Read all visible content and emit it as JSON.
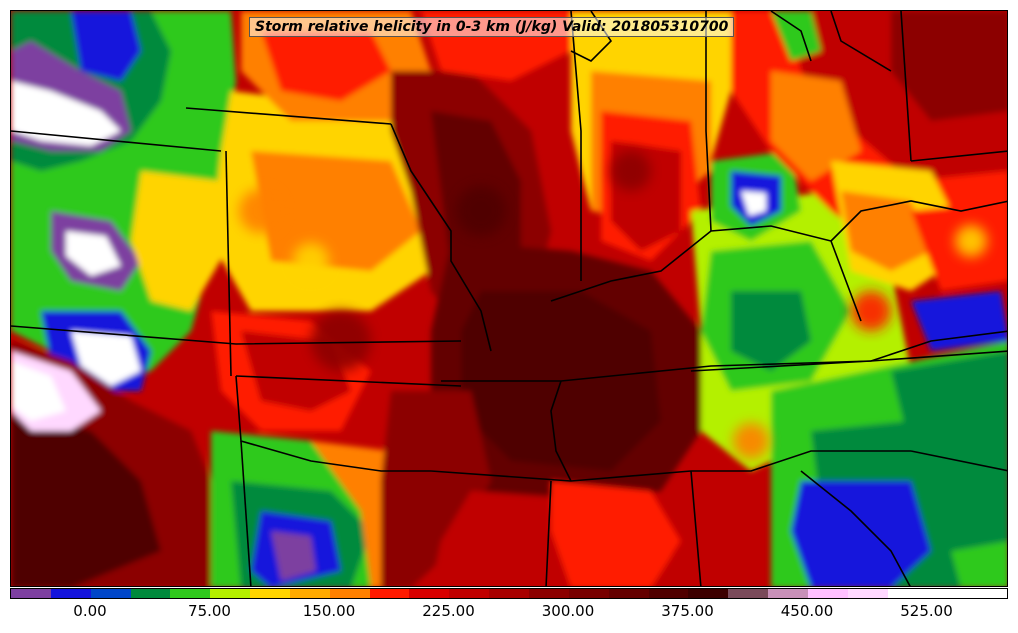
{
  "map": {
    "title": "Storm relative helicity in 0-3 km (J/kg) Valid: 201805310700",
    "colors": {
      "white": "#ffffff",
      "lavender": "#ffd0ff",
      "purple": "#7d3fa0",
      "blue": "#1414dc",
      "green": "#008a3c",
      "light_green": "#2fc91c",
      "yellow_green": "#b4f000",
      "yellow": "#ffd400",
      "orange": "#ff8000",
      "red": "#ff1a00",
      "dark_red": "#c00000",
      "deep_red": "#8c0000",
      "maroon": "#5a0000",
      "border": "#000000"
    }
  },
  "colorbar": {
    "colors": [
      "#7d3fa0",
      "#1414dc",
      "#0046c8",
      "#008a3c",
      "#2fc91c",
      "#b4f000",
      "#ffd400",
      "#ffaa00",
      "#ff8000",
      "#ff1a00",
      "#d80000",
      "#c00000",
      "#a80000",
      "#8c0000",
      "#780000",
      "#640000",
      "#500000",
      "#3c0000",
      "#7a4a5a",
      "#c890b8",
      "#ffc0ff",
      "#ffd8ff",
      "#ffffff",
      "#ffffff",
      "#ffffff"
    ],
    "ticks": [
      "0.00",
      "75.00",
      "150.00",
      "225.00",
      "300.00",
      "375.00",
      "450.00",
      "525.00"
    ]
  }
}
